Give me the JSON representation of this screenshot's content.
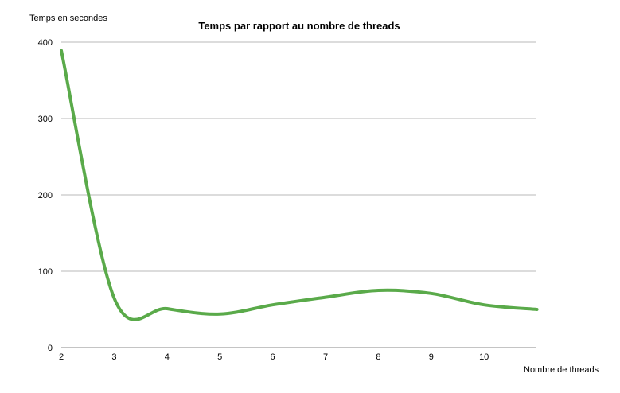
{
  "chart_data": {
    "type": "line",
    "title": "Temps par rapport au nombre de threads",
    "ylabel": "Temps en secondes",
    "xlabel": "Nombre de threads",
    "x": [
      2,
      3,
      4,
      5,
      6,
      7,
      8,
      9,
      10,
      11
    ],
    "x_tick_labels": [
      "2",
      "3",
      "4",
      "5",
      "6",
      "7",
      "8",
      "9",
      "10"
    ],
    "y_ticks": [
      0,
      100,
      200,
      300,
      400
    ],
    "ylim": [
      0,
      400
    ],
    "xlim": [
      2,
      11
    ],
    "grid": true,
    "series": [
      {
        "color": "#5aaa4a",
        "values": [
          389,
          65,
          51,
          44,
          56,
          66,
          75,
          71,
          56,
          50
        ]
      }
    ]
  }
}
